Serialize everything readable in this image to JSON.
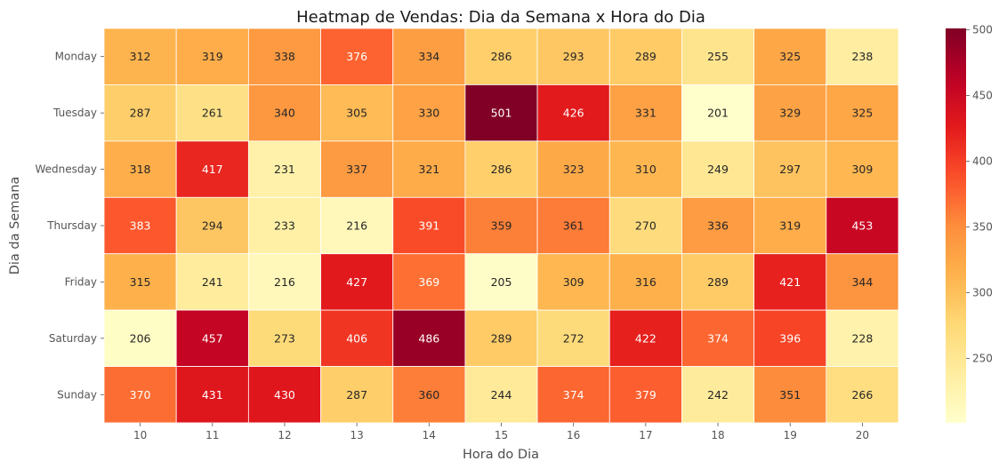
{
  "chart_data": {
    "type": "heatmap",
    "title": "Heatmap de Vendas: Dia da Semana x Hora do Dia",
    "xlabel": "Hora do Dia",
    "ylabel": "Dia da Semana",
    "x": [
      "10",
      "11",
      "12",
      "13",
      "14",
      "15",
      "16",
      "17",
      "18",
      "19",
      "20"
    ],
    "y": [
      "Monday",
      "Tuesday",
      "Wednesday",
      "Thursday",
      "Friday",
      "Saturday",
      "Sunday"
    ],
    "values": [
      [
        312,
        319,
        338,
        376,
        334,
        286,
        293,
        289,
        255,
        325,
        238
      ],
      [
        287,
        261,
        340,
        305,
        330,
        501,
        426,
        331,
        201,
        329,
        325
      ],
      [
        318,
        417,
        231,
        337,
        321,
        286,
        323,
        310,
        249,
        297,
        309
      ],
      [
        383,
        294,
        233,
        216,
        391,
        359,
        361,
        270,
        336,
        319,
        453
      ],
      [
        315,
        241,
        216,
        427,
        369,
        205,
        309,
        316,
        289,
        421,
        344
      ],
      [
        206,
        457,
        273,
        406,
        486,
        289,
        272,
        422,
        374,
        396,
        228
      ],
      [
        370,
        431,
        430,
        287,
        360,
        244,
        374,
        379,
        242,
        351,
        266
      ]
    ],
    "colormap": "YlOrRd",
    "colorbar": {
      "range": [
        201,
        501
      ],
      "ticks": [
        "250",
        "300",
        "350",
        "400",
        "450",
        "500"
      ]
    },
    "annotations": "cell values shown",
    "colors": {
      "low": "#ffffcc",
      "high": "#800026",
      "cell_border": "#ffffff"
    }
  }
}
